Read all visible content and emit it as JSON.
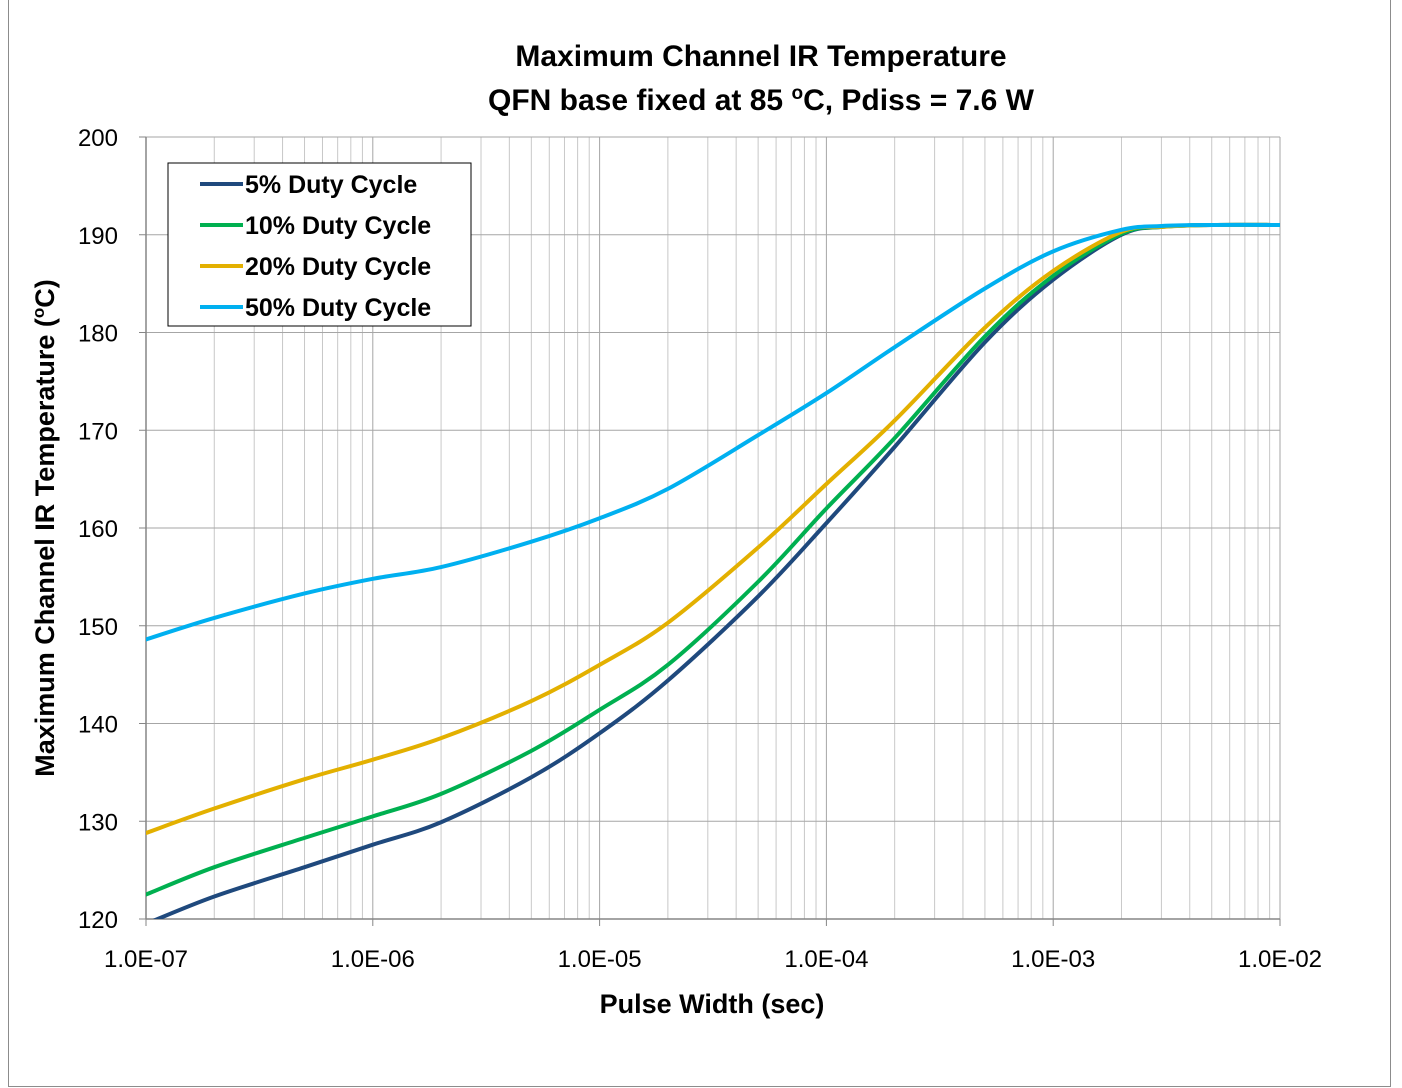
{
  "chart_data": {
    "type": "line",
    "title": "Maximum Channel IR Temperature",
    "subtitle_parts": {
      "before": "QFN base fixed at 85 ",
      "superscript": "o",
      "after": "C, Pdiss = 7.6 W"
    },
    "xlabel": "Pulse Width (sec)",
    "ylabel_parts": {
      "before": "Maximum Channel IR Temperature (",
      "superscript": "o",
      "after": "C)"
    },
    "x_scale": "log",
    "xlim": [
      1e-07,
      0.01
    ],
    "ylim": [
      120,
      200
    ],
    "x_tick_labels": [
      "1.0E-07",
      "1.0E-06",
      "1.0E-05",
      "1.0E-04",
      "1.0E-03",
      "1.0E-02"
    ],
    "y_tick_labels": [
      "120",
      "130",
      "140",
      "150",
      "160",
      "170",
      "180",
      "190",
      "200"
    ],
    "grid": "major and minor (log x), major (y)",
    "legend_position": "top-left",
    "series": [
      {
        "name": "5% Duty Cycle",
        "color": "#1F497D",
        "x": [
          1e-07,
          2e-07,
          5e-07,
          1e-06,
          2e-06,
          5e-06,
          1e-05,
          2e-05,
          5e-05,
          0.0001,
          0.0002,
          0.0005,
          0.001,
          0.002,
          0.003,
          0.005,
          0.01
        ],
        "y": [
          119.5,
          122.3,
          125.3,
          127.6,
          129.9,
          134.5,
          139.0,
          144.4,
          153.0,
          160.5,
          168.3,
          179.0,
          185.4,
          190.0,
          190.8,
          191.0,
          191.0
        ]
      },
      {
        "name": "10% Duty Cycle",
        "color": "#00B050",
        "x": [
          1e-07,
          2e-07,
          5e-07,
          1e-06,
          2e-06,
          5e-06,
          1e-05,
          2e-05,
          5e-05,
          0.0001,
          0.0002,
          0.0005,
          0.001,
          0.002,
          0.003,
          0.005,
          0.01
        ],
        "y": [
          122.5,
          125.3,
          128.3,
          130.5,
          132.8,
          137.2,
          141.4,
          146.0,
          154.5,
          162.0,
          169.2,
          179.6,
          185.8,
          190.1,
          190.8,
          191.0,
          191.0
        ]
      },
      {
        "name": "20% Duty Cycle",
        "color": "#E3B000",
        "x": [
          1e-07,
          2e-07,
          5e-07,
          1e-06,
          2e-06,
          5e-06,
          1e-05,
          2e-05,
          5e-05,
          0.0001,
          0.0002,
          0.0005,
          0.001,
          0.002,
          0.003,
          0.005,
          0.01
        ],
        "y": [
          128.8,
          131.3,
          134.3,
          136.3,
          138.5,
          142.3,
          146.0,
          150.3,
          158.0,
          164.5,
          171.0,
          180.5,
          186.3,
          190.3,
          190.8,
          191.0,
          191.0
        ]
      },
      {
        "name": "50% Duty Cycle",
        "color": "#00B0F0",
        "x": [
          1e-07,
          2e-07,
          5e-07,
          1e-06,
          2e-06,
          5e-06,
          1e-05,
          2e-05,
          5e-05,
          0.0001,
          0.0002,
          0.0005,
          0.001,
          0.002,
          0.003,
          0.005,
          0.01
        ],
        "y": [
          148.6,
          150.8,
          153.3,
          154.8,
          156.0,
          158.6,
          161.0,
          164.0,
          169.5,
          173.8,
          178.5,
          184.5,
          188.3,
          190.5,
          190.9,
          191.0,
          191.0
        ]
      }
    ]
  }
}
